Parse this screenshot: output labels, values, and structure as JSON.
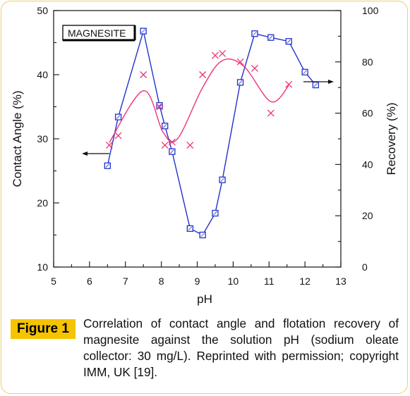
{
  "chart_data": {
    "type": "line",
    "inset_label": "MAGNESITE",
    "xlabel": "pH",
    "ylabel_left": "Contact Angle (%)",
    "ylabel_right": "Recovery (%)",
    "xlim": [
      5,
      13
    ],
    "ylim_left": [
      10,
      50
    ],
    "ylim_right": [
      0,
      100
    ],
    "xticks": [
      5,
      6,
      7,
      8,
      9,
      10,
      11,
      12,
      13
    ],
    "yticks_left": [
      10,
      20,
      30,
      40,
      50
    ],
    "yticks_right": [
      0,
      20,
      40,
      60,
      80,
      100
    ],
    "series": [
      {
        "axis": "right",
        "color": "#2233cc",
        "marker": "square",
        "x": [
          6.5,
          6.8,
          7.5,
          7.95,
          8.1,
          8.3,
          8.8,
          9.15,
          9.5,
          9.7,
          10.2,
          10.6,
          11.05,
          11.55,
          12.0,
          12.3
        ],
        "y": [
          39.5,
          58.5,
          92,
          63,
          55,
          45,
          15,
          12.5,
          21,
          34,
          72,
          91,
          89.5,
          88,
          76,
          71
        ]
      },
      {
        "axis": "left",
        "color": "#ee3377",
        "marker": "x",
        "x": [
          6.55,
          6.8,
          7.5,
          7.95,
          8.1,
          8.3,
          8.8,
          9.15,
          9.5,
          9.7,
          10.2,
          10.6,
          11.05,
          11.55
        ],
        "y": [
          29,
          30.5,
          40,
          35,
          29,
          29.5,
          29,
          40,
          43,
          43.3,
          42,
          41,
          34,
          38.5
        ]
      }
    ],
    "annotations": [
      "left-arrow",
      "right-arrow"
    ]
  },
  "caption": {
    "label": "Figure 1",
    "text": "Correlation of contact angle and flotation recovery of magnesite against the solution pH (sodium oleate collector: 30 mg/L). Reprinted with permission; copyright IMM, UK [19]."
  }
}
